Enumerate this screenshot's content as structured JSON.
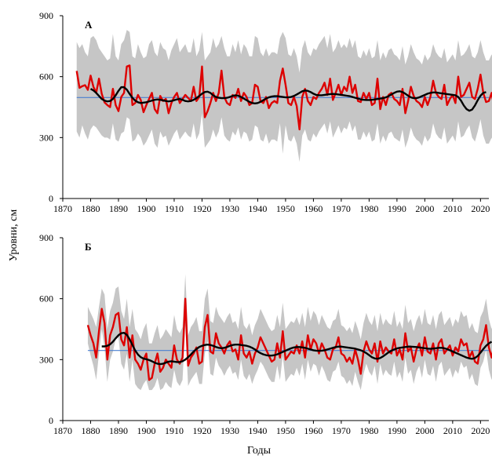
{
  "chart_data": {
    "type": "line",
    "ylabel": "Уровни, см",
    "xlabel": "Годы",
    "xlim": [
      1870,
      2023
    ],
    "ylim": [
      0,
      900
    ],
    "x_ticks": [
      1870,
      1880,
      1890,
      1900,
      1910,
      1920,
      1930,
      1940,
      1950,
      1960,
      1970,
      1980,
      1990,
      2000,
      2010,
      2020
    ],
    "y_ticks": [
      0,
      300,
      600,
      900
    ],
    "grid": false,
    "legend": "none",
    "colors": {
      "annual_line": "#dd0000",
      "smoothed_line": "#000000",
      "mean_line": "#4a7fd0",
      "range_band": "#c6c6c6"
    },
    "panels": [
      {
        "label": "А",
        "mean": 497,
        "start_year": 1875,
        "annual": [
          628,
          545,
          553,
          558,
          535,
          605,
          550,
          520,
          590,
          515,
          473,
          460,
          450,
          540,
          460,
          430,
          500,
          520,
          650,
          655,
          460,
          470,
          510,
          485,
          425,
          460,
          490,
          520,
          440,
          420,
          505,
          480,
          490,
          420,
          470,
          500,
          520,
          470,
          490,
          510,
          495,
          480,
          550,
          480,
          500,
          650,
          400,
          430,
          470,
          520,
          480,
          520,
          630,
          500,
          470,
          460,
          510,
          495,
          540,
          480,
          520,
          500,
          460,
          470,
          560,
          550,
          480,
          470,
          500,
          445,
          470,
          480,
          470,
          580,
          640,
          560,
          470,
          460,
          500,
          455,
          340,
          500,
          540,
          480,
          460,
          500,
          490,
          520,
          540,
          570,
          510,
          590,
          485,
          520,
          560,
          510,
          550,
          530,
          600,
          520,
          560,
          480,
          475,
          520,
          490,
          520,
          460,
          470,
          590,
          440,
          500,
          460,
          510,
          520,
          490,
          480,
          460,
          540,
          420,
          480,
          550,
          505,
          480,
          470,
          450,
          500,
          460,
          500,
          580,
          520,
          500,
          490,
          560,
          460,
          490,
          510,
          470,
          600,
          500,
          510,
          540,
          570,
          500,
          490,
          540,
          610,
          520,
          475,
          480,
          520,
          440,
          410,
          620,
          470,
          500,
          400,
          470,
          600,
          600,
          500,
          410,
          520,
          580,
          490,
          520,
          560,
          580,
          480
        ],
        "upper": [
          770,
          740,
          760,
          720,
          700,
          790,
          800,
          780,
          740,
          720,
          700,
          680,
          690,
          810,
          700,
          680,
          760,
          780,
          830,
          820,
          700,
          690,
          760,
          720,
          690,
          700,
          760,
          780,
          720,
          700,
          770,
          740,
          730,
          680,
          730,
          760,
          790,
          720,
          740,
          760,
          720,
          720,
          790,
          700,
          730,
          820,
          680,
          700,
          720,
          790,
          740,
          760,
          800,
          740,
          700,
          700,
          760,
          720,
          780,
          710,
          760,
          740,
          700,
          700,
          800,
          790,
          720,
          700,
          740,
          700,
          720,
          720,
          710,
          790,
          820,
          790,
          710,
          700,
          740,
          700,
          620,
          740,
          780,
          720,
          700,
          740,
          730,
          760,
          780,
          800,
          740,
          810,
          720,
          740,
          780,
          740,
          760,
          740,
          790,
          740,
          780,
          700,
          690,
          730,
          700,
          740,
          690,
          700,
          780,
          680,
          720,
          690,
          730,
          740,
          710,
          700,
          680,
          750,
          660,
          700,
          760,
          720,
          690,
          680,
          660,
          710,
          680,
          700,
          760,
          720,
          700,
          690,
          740,
          670,
          690,
          710,
          680,
          780,
          700,
          710,
          730,
          760,
          700,
          690,
          720,
          780,
          720,
          680,
          680,
          710,
          660,
          640,
          790,
          700,
          720,
          660,
          690,
          750,
          760,
          700,
          650,
          720,
          760,
          700,
          720,
          740,
          750,
          690
        ],
        "lower": [
          330,
          300,
          360,
          320,
          290,
          340,
          360,
          350,
          330,
          310,
          300,
          300,
          290,
          370,
          290,
          280,
          320,
          330,
          400,
          390,
          280,
          290,
          320,
          300,
          260,
          280,
          310,
          340,
          270,
          250,
          330,
          300,
          310,
          260,
          290,
          320,
          340,
          290,
          310,
          330,
          310,
          300,
          370,
          290,
          320,
          420,
          250,
          270,
          290,
          340,
          300,
          330,
          400,
          310,
          290,
          280,
          330,
          310,
          350,
          290,
          330,
          320,
          280,
          290,
          360,
          350,
          290,
          280,
          320,
          270,
          290,
          290,
          280,
          370,
          220,
          360,
          290,
          280,
          310,
          270,
          180,
          310,
          340,
          290,
          280,
          320,
          300,
          330,
          350,
          370,
          320,
          380,
          300,
          330,
          360,
          320,
          350,
          340,
          380,
          330,
          360,
          290,
          290,
          330,
          300,
          330,
          280,
          290,
          370,
          270,
          310,
          280,
          320,
          330,
          300,
          290,
          280,
          340,
          250,
          290,
          350,
          310,
          290,
          280,
          260,
          310,
          280,
          300,
          370,
          320,
          300,
          290,
          350,
          270,
          290,
          310,
          280,
          380,
          300,
          310,
          340,
          360,
          300,
          280,
          330,
          390,
          310,
          270,
          270,
          300,
          240,
          220,
          390,
          260,
          300,
          210,
          260,
          360,
          370,
          300,
          220,
          310,
          370,
          280,
          300,
          330,
          350,
          280
        ],
        "smooth_start_year": 1880,
        "smooth": [
          540,
          532,
          520,
          505,
          490,
          482,
          478,
          480,
          490,
          508,
          530,
          548,
          548,
          536,
          515,
          496,
          482,
          474,
          470,
          472,
          474,
          478,
          482,
          486,
          488,
          486,
          483,
          480,
          478,
          480,
          484,
          488,
          490,
          486,
          480,
          478,
          480,
          486,
          494,
          505,
          516,
          524,
          526,
          520,
          508,
          500,
          496,
          494,
          494,
          496,
          500,
          505,
          508,
          506,
          500,
          492,
          484,
          476,
          470,
          468,
          470,
          476,
          484,
          492,
          498,
          502,
          504,
          504,
          502,
          500,
          498,
          498,
          500,
          505,
          512,
          520,
          528,
          532,
          530,
          524,
          516,
          510,
          508,
          508,
          510,
          512,
          514,
          515,
          514,
          512,
          510,
          508,
          506,
          504,
          500,
          496,
          492,
          488,
          486,
          485,
          485,
          486,
          488,
          490,
          492,
          494,
          498,
          504,
          512,
          520,
          526,
          528,
          524,
          516,
          506,
          498,
          494,
          494,
          498,
          504,
          510,
          516,
          520,
          522,
          522,
          520,
          518,
          516,
          514,
          512,
          510,
          508,
          500,
          482,
          458,
          440,
          432,
          438,
          458,
          484,
          506,
          520,
          524
        ]
      },
      {
        "label": "Б",
        "mean": 345,
        "start_year": 1879,
        "annual": [
          470,
          420,
          380,
          310,
          440,
          550,
          480,
          300,
          420,
          460,
          520,
          530,
          400,
          370,
          460,
          310,
          420,
          300,
          280,
          250,
          300,
          330,
          200,
          210,
          280,
          330,
          240,
          260,
          300,
          280,
          260,
          370,
          300,
          280,
          310,
          600,
          270,
          310,
          330,
          360,
          280,
          290,
          460,
          520,
          340,
          330,
          430,
          380,
          360,
          330,
          370,
          390,
          340,
          350,
          300,
          420,
          330,
          310,
          340,
          280,
          330,
          360,
          410,
          380,
          350,
          320,
          290,
          300,
          380,
          310,
          440,
          300,
          320,
          340,
          330,
          370,
          330,
          390,
          310,
          420,
          350,
          400,
          380,
          330,
          380,
          350,
          310,
          300,
          350,
          360,
          410,
          330,
          320,
          290,
          310,
          280,
          350,
          300,
          230,
          340,
          390,
          350,
          330,
          380,
          290,
          390,
          330,
          360,
          340,
          330,
          400,
          320,
          350,
          300,
          430,
          340,
          360,
          290,
          350,
          380,
          320,
          410,
          340,
          330,
          380,
          300,
          380,
          400,
          330,
          350,
          370,
          320,
          360,
          340,
          400,
          370,
          380,
          310,
          340,
          290,
          280,
          370,
          400,
          470,
          360,
          310,
          380,
          420,
          440,
          400,
          360,
          200
        ],
        "upper": [
          560,
          530,
          500,
          460,
          560,
          650,
          620,
          450,
          540,
          580,
          650,
          660,
          540,
          500,
          600,
          460,
          550,
          450,
          430,
          400,
          450,
          480,
          380,
          380,
          430,
          470,
          400,
          420,
          450,
          430,
          410,
          520,
          450,
          430,
          460,
          720,
          420,
          460,
          480,
          510,
          440,
          440,
          600,
          650,
          490,
          480,
          560,
          520,
          500,
          480,
          510,
          530,
          480,
          490,
          450,
          560,
          470,
          450,
          480,
          420,
          470,
          500,
          550,
          520,
          490,
          460,
          440,
          450,
          520,
          460,
          580,
          450,
          470,
          490,
          480,
          510,
          470,
          530,
          460,
          560,
          490,
          540,
          520,
          470,
          520,
          490,
          460,
          450,
          490,
          500,
          550,
          470,
          460,
          440,
          460,
          430,
          490,
          450,
          400,
          480,
          530,
          490,
          470,
          520,
          440,
          530,
          470,
          500,
          480,
          470,
          540,
          460,
          490,
          450,
          570,
          480,
          500,
          440,
          490,
          520,
          470,
          550,
          480,
          470,
          520,
          450,
          520,
          540,
          470,
          490,
          510,
          460,
          500,
          480,
          540,
          510,
          520,
          450,
          480,
          440,
          430,
          510,
          540,
          600,
          500,
          450,
          520,
          560,
          580,
          540,
          500,
          360
        ],
        "lower": [
          380,
          320,
          270,
          200,
          330,
          450,
          360,
          190,
          300,
          340,
          400,
          410,
          280,
          250,
          330,
          190,
          300,
          180,
          160,
          150,
          180,
          200,
          150,
          150,
          170,
          210,
          150,
          160,
          190,
          170,
          160,
          250,
          190,
          170,
          200,
          470,
          170,
          200,
          220,
          240,
          180,
          180,
          330,
          390,
          230,
          220,
          310,
          270,
          250,
          220,
          250,
          270,
          230,
          240,
          200,
          300,
          220,
          200,
          230,
          180,
          220,
          250,
          290,
          270,
          240,
          210,
          190,
          190,
          270,
          200,
          320,
          190,
          210,
          230,
          220,
          260,
          220,
          280,
          200,
          300,
          240,
          280,
          270,
          220,
          270,
          240,
          200,
          190,
          240,
          250,
          290,
          220,
          210,
          180,
          200,
          170,
          240,
          190,
          150,
          230,
          280,
          240,
          220,
          270,
          180,
          280,
          220,
          250,
          230,
          220,
          290,
          210,
          240,
          190,
          310,
          230,
          250,
          180,
          240,
          270,
          210,
          300,
          230,
          220,
          270,
          190,
          270,
          290,
          220,
          240,
          260,
          210,
          250,
          230,
          290,
          260,
          270,
          200,
          230,
          180,
          170,
          260,
          290,
          350,
          250,
          200,
          270,
          310,
          330,
          290,
          250,
          150
        ],
        "smooth_start_year": 1884,
        "smooth": [
          365,
          365,
          368,
          375,
          388,
          405,
          420,
          430,
          432,
          422,
          400,
          372,
          345,
          325,
          312,
          305,
          302,
          298,
          292,
          285,
          280,
          278,
          280,
          285,
          290,
          292,
          290,
          288,
          288,
          292,
          300,
          312,
          325,
          340,
          352,
          362,
          368,
          372,
          374,
          372,
          368,
          362,
          358,
          356,
          358,
          362,
          368,
          372,
          374,
          374,
          372,
          370,
          368,
          364,
          358,
          350,
          340,
          332,
          326,
          322,
          320,
          320,
          322,
          326,
          332,
          338,
          344,
          350,
          356,
          360,
          362,
          362,
          360,
          358,
          354,
          350,
          346,
          344,
          343,
          344,
          346,
          350,
          354,
          358,
          362,
          364,
          364,
          362,
          360,
          358,
          356,
          354,
          350,
          346,
          340,
          332,
          322,
          312,
          306,
          304,
          308,
          316,
          326,
          336,
          344,
          350,
          355,
          358,
          360,
          362,
          364,
          364,
          363,
          362,
          360,
          358,
          356,
          354,
          353,
          354,
          356,
          358,
          358,
          356,
          352,
          346,
          340,
          334,
          328,
          322,
          316,
          310,
          306,
          304,
          308,
          318,
          334,
          352,
          368,
          380,
          388
        ]
      }
    ],
    "axis_label_y": "Уровни, см",
    "axis_label_x": "Годы"
  }
}
